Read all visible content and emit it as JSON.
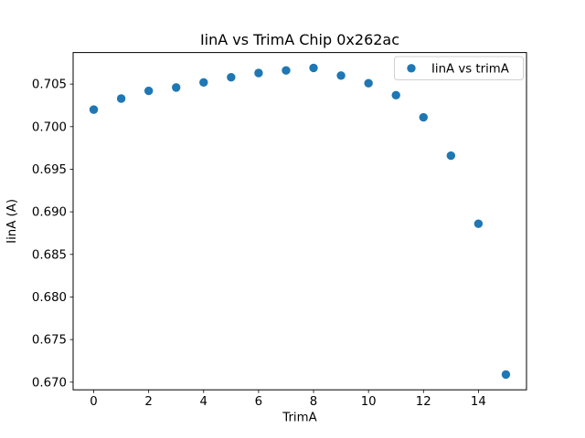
{
  "figure": {
    "background": "#ffffff"
  },
  "chart_data": {
    "type": "scatter",
    "title": "IinA vs TrimA Chip 0x262ac",
    "xlabel": "TrimA",
    "ylabel": "IinA (A)",
    "x": [
      0,
      1,
      2,
      3,
      4,
      5,
      6,
      7,
      8,
      9,
      10,
      11,
      12,
      13,
      14,
      15
    ],
    "series": [
      {
        "name": "IinA vs trimA",
        "color": "#1f77b4",
        "y": [
          0.702,
          0.7033,
          0.7042,
          0.7046,
          0.7052,
          0.7058,
          0.7063,
          0.7066,
          0.7069,
          0.706,
          0.7051,
          0.7037,
          0.7011,
          0.6966,
          0.6886,
          0.6709
        ]
      }
    ],
    "xlim": [
      -0.75,
      15.75
    ],
    "ylim": [
      0.6691,
      0.7087
    ],
    "xticks": [
      0,
      2,
      4,
      6,
      8,
      10,
      12,
      14
    ],
    "yticks": [
      0.67,
      0.675,
      0.68,
      0.685,
      0.69,
      0.695,
      0.7,
      0.705
    ],
    "ytick_decimals": 3,
    "grid": false,
    "legend": {
      "position": "upper right",
      "label": "IinA vs trimA"
    },
    "colors": {
      "marker": "#1f77b4",
      "text": "#000000",
      "axis": "#000000",
      "legend_border": "#cccccc",
      "legend_background": "#ffffff"
    }
  }
}
